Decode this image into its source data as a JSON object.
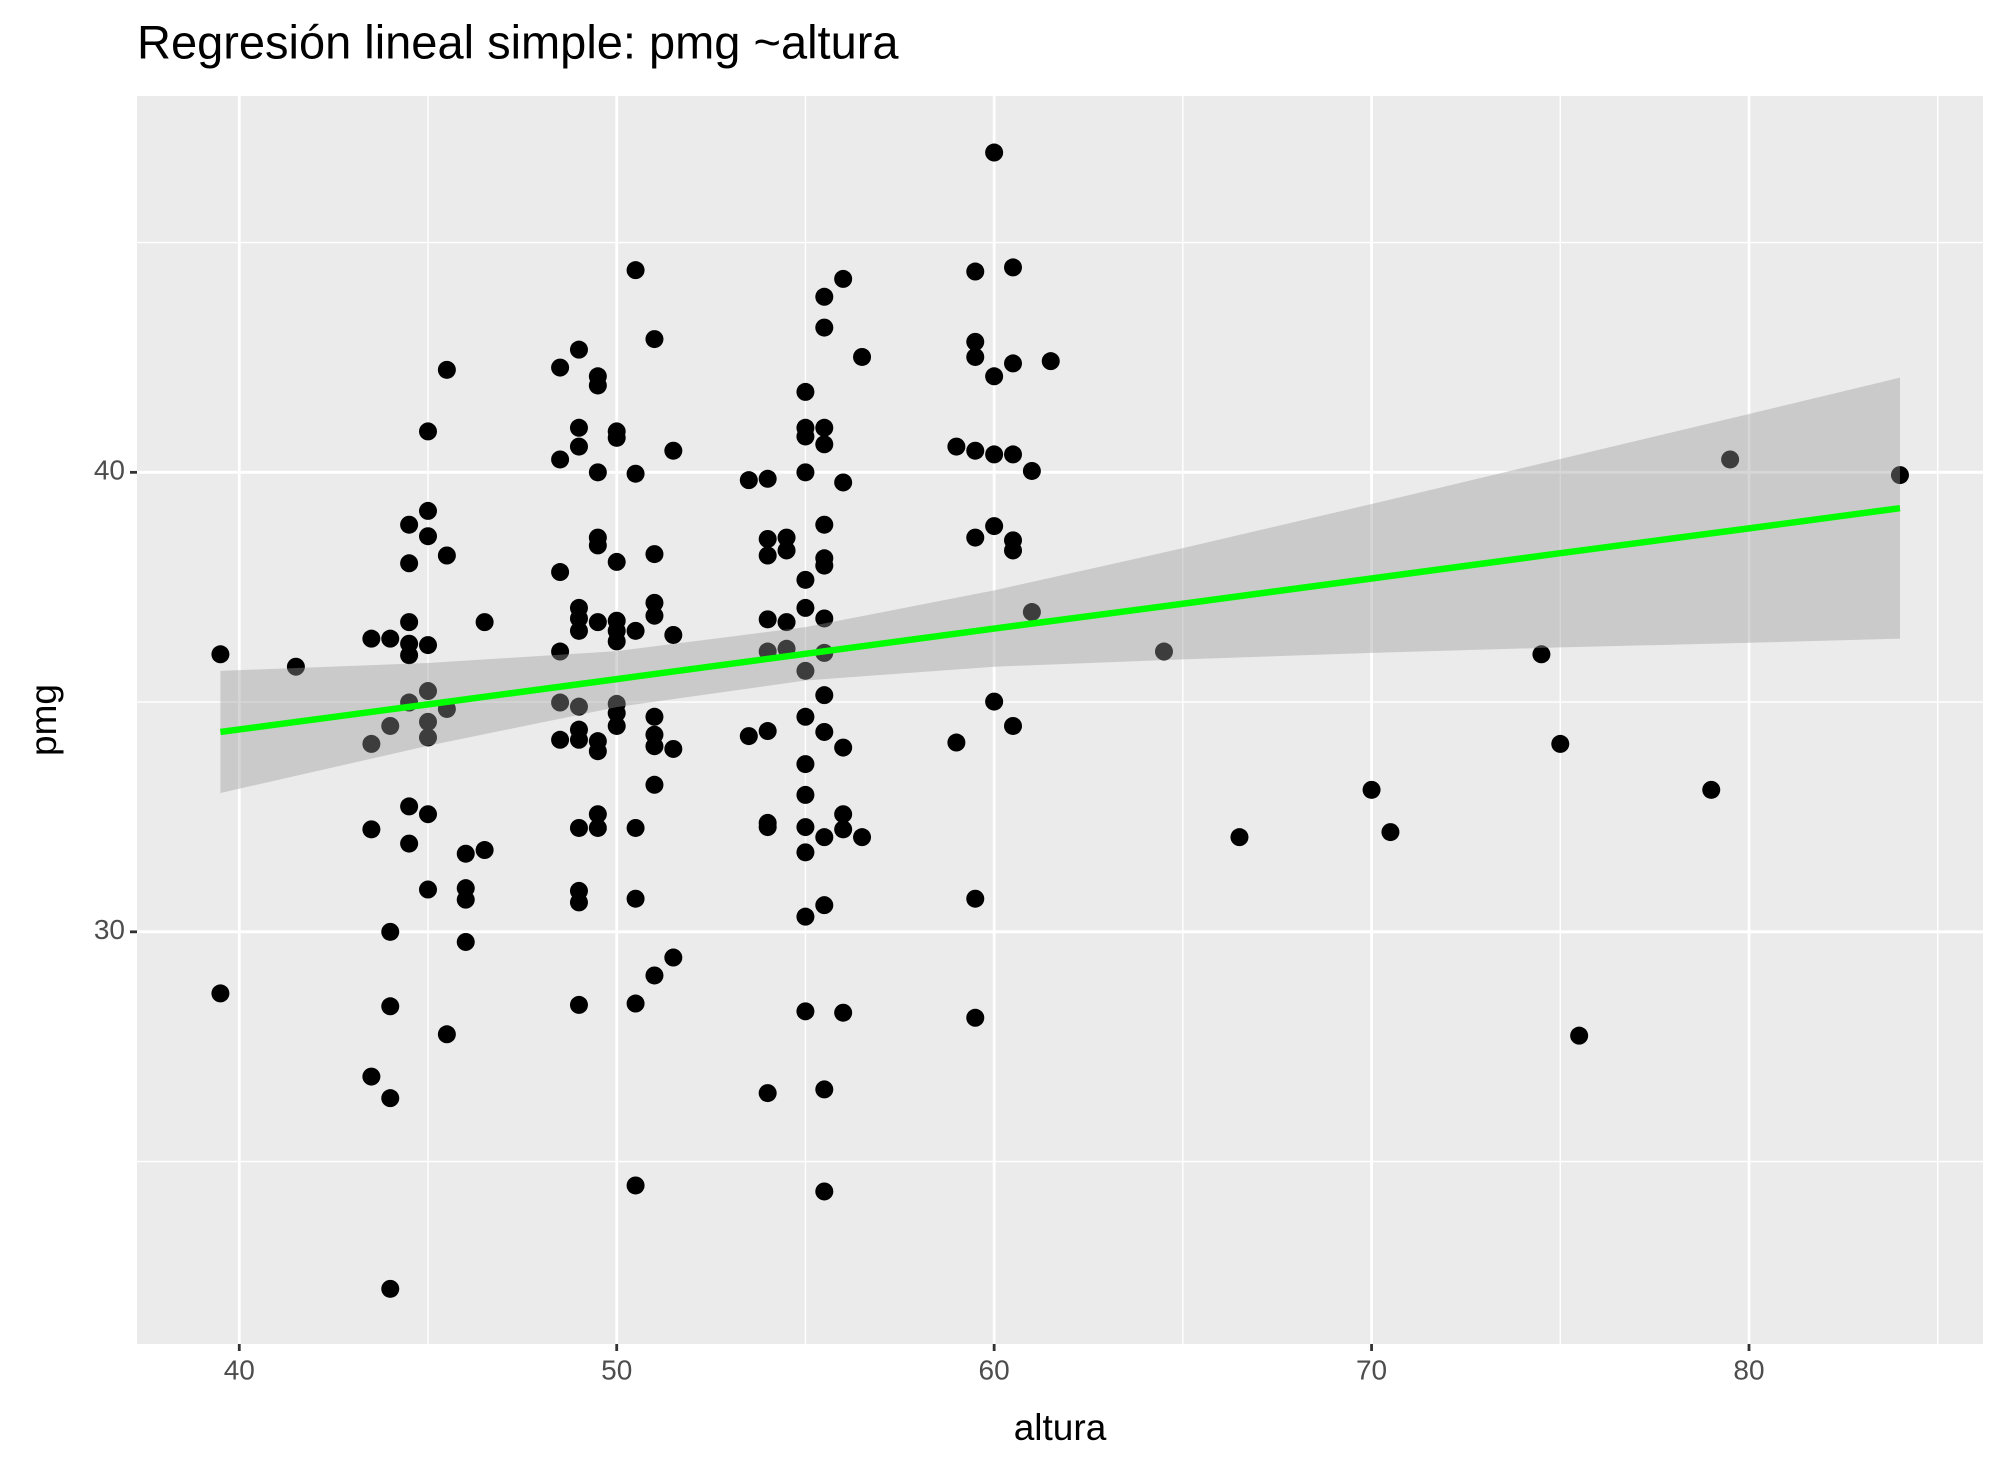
{
  "chart_data": {
    "type": "scatter",
    "title": "Regresión lineal simple:  pmg ~altura",
    "x_label": "altura",
    "y_label": "pmg",
    "xlim": [
      37.29,
      86.2
    ],
    "ylim": [
      21.03,
      48.19
    ],
    "xticks": [
      40,
      50,
      60,
      70,
      80
    ],
    "yticks": [
      30,
      40
    ],
    "x_minor_ticks": [
      45,
      55,
      65,
      75,
      85
    ],
    "y_minor_ticks": [
      25,
      35,
      45
    ],
    "grid": true,
    "points": {
      "color": "#000000",
      "x": [
        39.5,
        39.5,
        41.5,
        43.5,
        43.5,
        43.5,
        43.5,
        44,
        44,
        44,
        44,
        44,
        44,
        44.5,
        44.5,
        44.5,
        44.5,
        44.5,
        44.5,
        44.5,
        44.5,
        45,
        45,
        45,
        45,
        45,
        45,
        45,
        45,
        45,
        45.5,
        45.5,
        45.5,
        45.5,
        46,
        46,
        46,
        46,
        46.5,
        46.5,
        48.5,
        48.5,
        48.5,
        48.5,
        48.5,
        48.5,
        49,
        49,
        49,
        49,
        49,
        49,
        49,
        49,
        49,
        49,
        49,
        49,
        49,
        49.5,
        49.5,
        49.5,
        49.5,
        49.5,
        49.5,
        49.5,
        49.5,
        49.5,
        49.5,
        50,
        50,
        50,
        50,
        50,
        50,
        50,
        50,
        50,
        50.5,
        50.5,
        50.5,
        50.5,
        50.5,
        50.5,
        50.5,
        51,
        51,
        51,
        51,
        51,
        51,
        51,
        51,
        51,
        51.5,
        51.5,
        51.5,
        51.5,
        53.5,
        53.5,
        54,
        54,
        54,
        54,
        54,
        54,
        54,
        54,
        54,
        54.5,
        54.5,
        54.5,
        54.5,
        55,
        55,
        55,
        55,
        55,
        55,
        55,
        55,
        55,
        55,
        55,
        55,
        55,
        55,
        55.5,
        55.5,
        55.5,
        55.5,
        55.5,
        55.5,
        55.5,
        55.5,
        55.5,
        55.5,
        55.5,
        55.5,
        55.5,
        55.5,
        55.5,
        56,
        56,
        56,
        56,
        56,
        56,
        56.5,
        56.5,
        59,
        59,
        59.5,
        59.5,
        59.5,
        59.5,
        59.5,
        59.5,
        59.5,
        60,
        60,
        60,
        60,
        60,
        60.5,
        60.5,
        60.5,
        60.5,
        60.5,
        60.5,
        61,
        61,
        61.5,
        64.5,
        66.5,
        70,
        70.5,
        74.5,
        75,
        75.5,
        79,
        79.5,
        84
      ],
      "y": [
        36.04,
        28.66,
        35.77,
        36.38,
        34.09,
        32.23,
        26.85,
        36.38,
        34.48,
        30.0,
        28.38,
        26.38,
        22.23,
        38.86,
        38.02,
        36.74,
        36.27,
        36.02,
        34.99,
        32.73,
        31.92,
        40.89,
        39.16,
        38.61,
        36.24,
        35.24,
        34.57,
        34.23,
        32.56,
        30.92,
        42.23,
        38.19,
        34.85,
        27.77,
        31.7,
        30.95,
        30.7,
        29.78,
        36.74,
        31.78,
        42.28,
        40.28,
        37.83,
        36.1,
        34.99,
        34.18,
        42.67,
        40.97,
        40.56,
        37.05,
        36.82,
        36.55,
        34.9,
        34.4,
        34.18,
        32.26,
        30.89,
        30.64,
        28.41,
        42.09,
        41.89,
        40.0,
        38.58,
        38.41,
        36.74,
        34.15,
        33.93,
        32.56,
        32.26,
        40.89,
        40.75,
        38.05,
        36.77,
        36.55,
        36.32,
        34.96,
        34.76,
        34.48,
        44.4,
        39.97,
        36.55,
        32.26,
        30.72,
        28.44,
        24.48,
        42.9,
        38.22,
        37.16,
        36.88,
        34.68,
        34.29,
        34.04,
        33.2,
        29.05,
        40.47,
        36.46,
        33.98,
        29.44,
        39.83,
        34.26,
        39.86,
        38.55,
        38.19,
        36.8,
        36.1,
        34.37,
        32.37,
        32.28,
        26.49,
        38.58,
        38.3,
        36.74,
        36.16,
        41.75,
        40.97,
        40.78,
        40.0,
        37.66,
        37.05,
        35.68,
        34.68,
        33.65,
        32.98,
        32.28,
        31.73,
        30.33,
        28.27,
        43.82,
        43.15,
        40.97,
        40.61,
        38.86,
        38.13,
        37.97,
        36.82,
        36.07,
        35.15,
        34.35,
        32.06,
        30.58,
        26.57,
        24.35,
        44.21,
        39.78,
        34.01,
        32.56,
        32.23,
        28.24,
        42.51,
        32.06,
        34.12,
        40.56,
        44.37,
        42.84,
        42.51,
        38.58,
        30.72,
        28.13,
        40.47,
        46.96,
        42.09,
        40.39,
        38.83,
        35.01,
        44.46,
        42.37,
        40.39,
        38.52,
        38.3,
        34.48,
        40.03,
        36.96,
        42.42,
        36.1,
        32.06,
        33.09,
        32.17,
        36.04,
        34.09,
        27.74,
        33.09,
        40.28,
        39.94
      ]
    },
    "fit": {
      "color": "#00ff00",
      "band_color": "#999999",
      "x": [
        39.5,
        45,
        50,
        55,
        60,
        65,
        70,
        75,
        80,
        84
      ],
      "y": [
        34.35,
        34.95,
        35.5,
        36.05,
        36.6,
        37.14,
        37.69,
        38.24,
        38.78,
        39.22
      ],
      "lower": [
        33.02,
        34.05,
        34.89,
        35.47,
        35.77,
        35.93,
        36.07,
        36.19,
        36.29,
        36.38
      ],
      "upper": [
        35.68,
        35.85,
        36.11,
        36.63,
        37.43,
        38.35,
        39.31,
        40.29,
        41.27,
        42.06
      ]
    }
  }
}
